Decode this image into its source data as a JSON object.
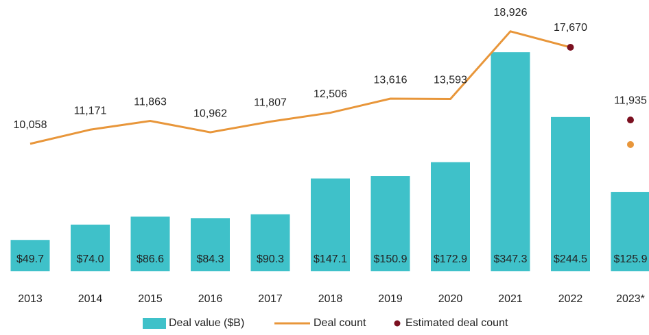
{
  "chart_data": {
    "type": "bar",
    "categories": [
      "2013",
      "2014",
      "2015",
      "2016",
      "2017",
      "2018",
      "2019",
      "2020",
      "2021",
      "2022",
      "2023*"
    ],
    "ylim": [
      0,
      430
    ],
    "y2lim": [
      0,
      21400
    ],
    "legend": "bottom",
    "series": [
      {
        "name": "Deal value ($B)",
        "type": "bar",
        "color": "#3fc1c9",
        "values": [
          49.7,
          74.0,
          86.6,
          84.3,
          90.3,
          147.1,
          150.9,
          172.9,
          347.3,
          244.5,
          125.9
        ],
        "value_labels": [
          "$49.7",
          "$74.0",
          "$86.6",
          "$84.3",
          "$90.3",
          "$147.1",
          "$150.9",
          "$172.9",
          "$347.3",
          "$244.5",
          "$125.9"
        ]
      },
      {
        "name": "Deal count",
        "type": "line",
        "axis": "y2",
        "color": "#e8963a",
        "values": [
          10058,
          11171,
          11863,
          10962,
          11807,
          12506,
          13616,
          13593,
          18926,
          17670,
          10000
        ],
        "value_labels": [
          "10,058",
          "11,171",
          "11,863",
          "10,962",
          "11,807",
          "12,506",
          "13,616",
          "13,593",
          "18,926",
          null,
          null
        ]
      },
      {
        "name": "Estimated deal count",
        "type": "scatter",
        "axis": "y2",
        "color": "#7b1020",
        "values": [
          null,
          null,
          null,
          null,
          null,
          null,
          null,
          null,
          null,
          17670,
          11935
        ],
        "value_labels": [
          null,
          null,
          null,
          null,
          null,
          null,
          null,
          null,
          null,
          "17,670",
          "11,935"
        ]
      }
    ]
  }
}
